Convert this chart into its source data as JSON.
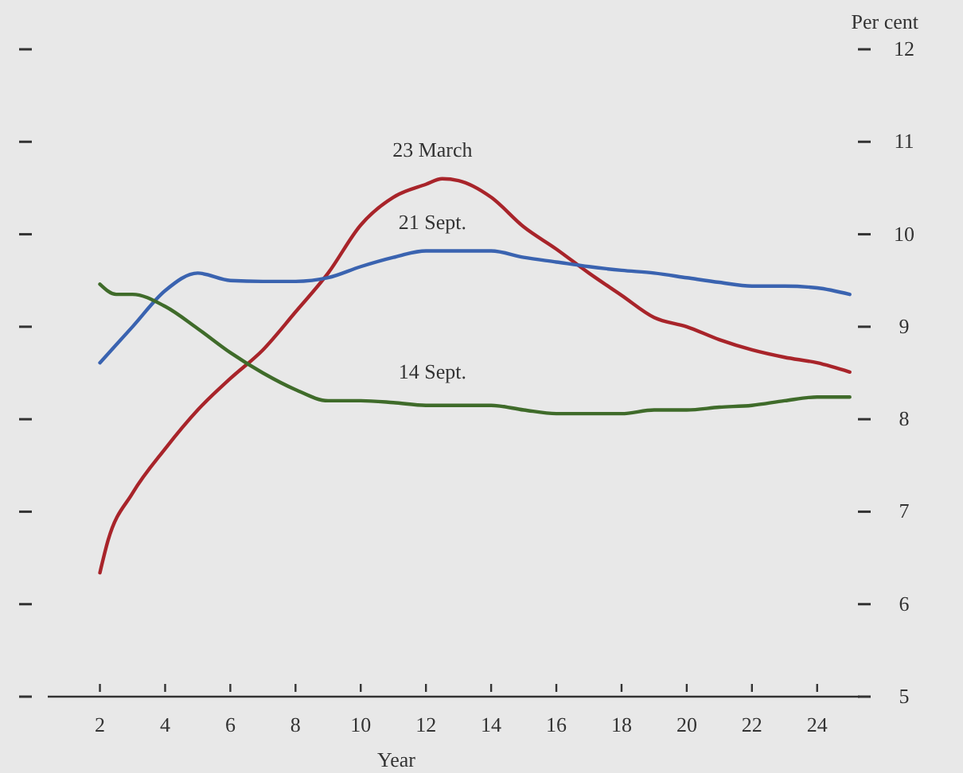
{
  "chart_data": {
    "type": "line",
    "xlabel": "Year",
    "ylabel": "Per cent",
    "xlim": [
      0.4,
      25.3
    ],
    "xticks": [
      2,
      4,
      6,
      8,
      10,
      12,
      14,
      16,
      18,
      20,
      22,
      24
    ],
    "ylim": [
      5,
      12
    ],
    "yticks": [
      5,
      6,
      7,
      8,
      9,
      10,
      11,
      12
    ],
    "grid": false,
    "legend": false,
    "marker": "none",
    "line_style": "solid",
    "series": [
      {
        "name": "23 March",
        "color": "#a8242a",
        "x": [
          2,
          2.25,
          3,
          4,
          5,
          6,
          7,
          8,
          9,
          10,
          11,
          12,
          12.5,
          13,
          14,
          15,
          16,
          17,
          18,
          19,
          20,
          21,
          22,
          23,
          24,
          25
        ],
        "values": [
          6.34,
          6.69,
          7.2,
          7.68,
          8.1,
          8.44,
          8.75,
          9.16,
          9.58,
          10.1,
          10.4,
          10.54,
          10.6,
          10.58,
          10.4,
          10.08,
          9.84,
          9.58,
          9.34,
          9.1,
          9.0,
          8.86,
          8.75,
          8.67,
          8.61,
          8.51
        ]
      },
      {
        "name": "21 Sept.",
        "color": "#3a63b0",
        "x": [
          2,
          3,
          4,
          5,
          6,
          7,
          8,
          9,
          10,
          11,
          12,
          13,
          14,
          15,
          16,
          17,
          18,
          19,
          20,
          21,
          22,
          23,
          24,
          25
        ],
        "values": [
          8.61,
          9.0,
          9.39,
          9.58,
          9.5,
          9.49,
          9.49,
          9.53,
          9.65,
          9.75,
          9.82,
          9.82,
          9.82,
          9.75,
          9.7,
          9.65,
          9.61,
          9.58,
          9.53,
          9.48,
          9.44,
          9.44,
          9.42,
          9.35
        ]
      },
      {
        "name": "14 Sept.",
        "color": "#3f6b2a",
        "x": [
          2,
          2.5,
          3,
          4,
          5,
          6,
          7,
          8,
          9,
          10,
          11,
          12,
          13,
          14,
          15,
          16,
          17,
          18,
          19,
          20,
          21,
          22,
          23,
          24,
          25
        ],
        "values": [
          9.46,
          9.35,
          9.35,
          9.22,
          8.98,
          8.72,
          8.5,
          8.32,
          8.2,
          8.2,
          8.18,
          8.15,
          8.15,
          8.15,
          8.1,
          8.06,
          8.06,
          8.06,
          8.1,
          8.1,
          8.13,
          8.15,
          8.2,
          8.24,
          8.24
        ]
      }
    ]
  }
}
